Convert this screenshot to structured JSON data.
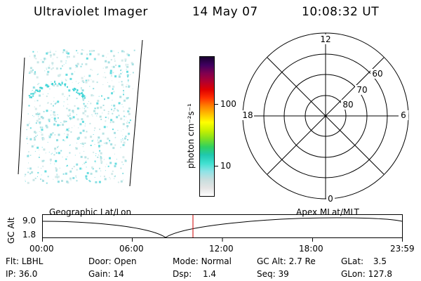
{
  "header": {
    "title": "Ultraviolet Imager",
    "date": "14 May 07",
    "time": "10:08:32 UT"
  },
  "colorbar": {
    "unit_label": "photon cm⁻²s⁻¹",
    "ticks": [
      "100",
      "10"
    ],
    "colors": [
      "#ffffff",
      "#e4e4e4",
      "#c8dede",
      "#8fe3e6",
      "#40e0d0",
      "#20c8b0",
      "#30d060",
      "#80e020",
      "#c8f000",
      "#ffff00",
      "#ffc000",
      "#ff8000",
      "#ff3000",
      "#e00000",
      "#b00030",
      "#800050",
      "#400060",
      "#1a0030"
    ]
  },
  "polar_plot": {
    "time_labels": [
      "12",
      "18",
      "6",
      "0"
    ],
    "lat_labels": [
      "60",
      "70",
      "80"
    ]
  },
  "timeline": {
    "y_label": "GC Alt",
    "y_ticks": [
      "9.0",
      "1.8"
    ],
    "left_label": "Geographic Lat/Lon",
    "right_label": "Apex MLat/MLT",
    "x_ticks": [
      "00:00",
      "06:00",
      "12:00",
      "18:00",
      "23:59"
    ],
    "cursor_color": "#cc0000"
  },
  "info": {
    "row1": [
      {
        "label": "Flt:",
        "value": "LBHL"
      },
      {
        "label": "Door:",
        "value": "Open"
      },
      {
        "label": "Mode:",
        "value": "Normal"
      },
      {
        "label": "GC Alt:",
        "value": "2.7 Re"
      },
      {
        "label": "GLat:",
        "value": "3.5"
      }
    ],
    "row2": [
      {
        "label": "IP:",
        "value": "36.0"
      },
      {
        "label": "Gain:",
        "value": "14"
      },
      {
        "label": "Dsp:",
        "value": "1.4"
      },
      {
        "label": "Seq:",
        "value": "39"
      },
      {
        "label": "GLon:",
        "value": "127.8"
      }
    ]
  }
}
